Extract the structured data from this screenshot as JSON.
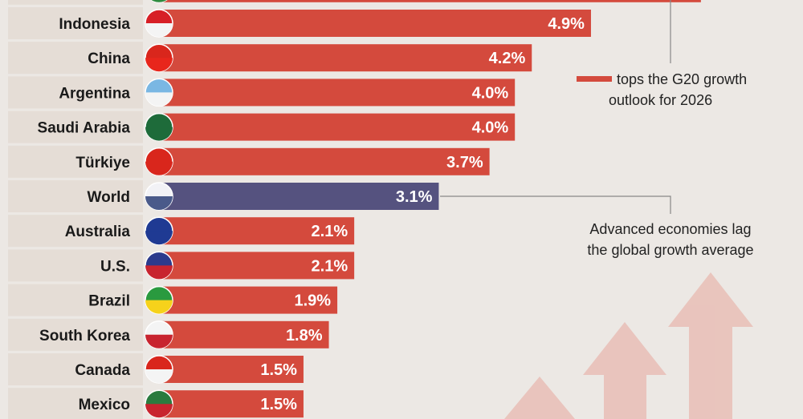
{
  "chart_data": {
    "type": "bar",
    "orientation": "horizontal",
    "categories": [
      "",
      "Indonesia",
      "China",
      "Argentina",
      "Saudi Arabia",
      "Türkiye",
      "World",
      "Australia",
      "U.S.",
      "Brazil",
      "South Korea",
      "Canada",
      "Mexico"
    ],
    "values": [
      6.2,
      4.9,
      4.2,
      4.0,
      4.0,
      3.7,
      3.1,
      2.1,
      2.1,
      1.9,
      1.8,
      1.5,
      1.5
    ],
    "value_labels": [
      "",
      "4.9%",
      "4.2%",
      "4.0%",
      "4.0%",
      "3.7%",
      "3.1%",
      "2.1%",
      "2.1%",
      "1.9%",
      "1.8%",
      "1.5%",
      "1.5%"
    ],
    "flag_icons": [
      "india-flag-icon",
      "indonesia-flag-icon",
      "china-flag-icon",
      "argentina-flag-icon",
      "saudi-arabia-flag-icon",
      "turkiye-flag-icon",
      "globe-icon",
      "australia-flag-icon",
      "us-flag-icon",
      "brazil-flag-icon",
      "south-korea-flag-icon",
      "canada-flag-icon",
      "mexico-flag-icon"
    ],
    "highlight_category": "World",
    "colors": {
      "bar": "#d44a3d",
      "highlight": "#55527f",
      "background": "#ece8e4",
      "label_box": "#e5ddd6"
    },
    "grid": false,
    "title": "",
    "xlabel": "",
    "ylabel": ""
  },
  "annotations": {
    "top": [
      "tops the G20 growth",
      "outlook for 2026"
    ],
    "world": [
      "Advanced economies lag",
      "the global growth average"
    ]
  }
}
